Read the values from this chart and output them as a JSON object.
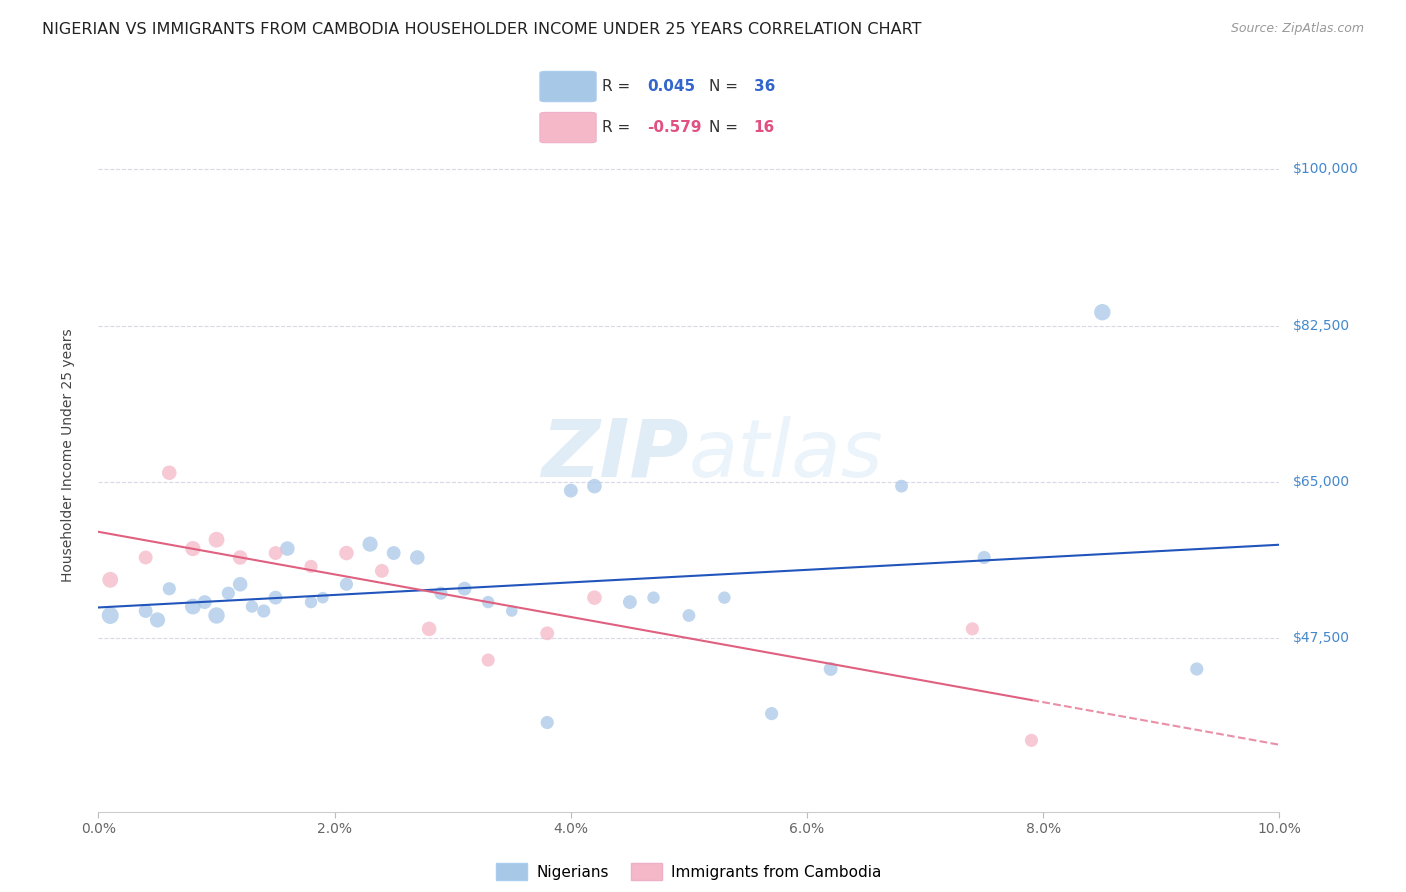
{
  "title": "NIGERIAN VS IMMIGRANTS FROM CAMBODIA HOUSEHOLDER INCOME UNDER 25 YEARS CORRELATION CHART",
  "source": "Source: ZipAtlas.com",
  "ylabel": "Householder Income Under 25 years",
  "ytick_labels": [
    "$100,000",
    "$82,500",
    "$65,000",
    "$47,500"
  ],
  "ytick_values": [
    100000,
    82500,
    65000,
    47500
  ],
  "xmin": 0.0,
  "xmax": 0.1,
  "ymin": 28000,
  "ymax": 108000,
  "blue_color": "#a8c8e8",
  "blue_line_color": "#2255bb",
  "pink_color": "#f4b8c8",
  "pink_line_color": "#e06080",
  "R_blue": 0.045,
  "N_blue": 36,
  "R_pink": -0.579,
  "N_pink": 16,
  "blue_scatter_x": [
    0.001,
    0.004,
    0.005,
    0.006,
    0.008,
    0.009,
    0.01,
    0.011,
    0.012,
    0.013,
    0.014,
    0.015,
    0.016,
    0.018,
    0.019,
    0.021,
    0.023,
    0.025,
    0.027,
    0.029,
    0.031,
    0.033,
    0.035,
    0.038,
    0.04,
    0.042,
    0.045,
    0.047,
    0.05,
    0.053,
    0.057,
    0.062,
    0.068,
    0.075,
    0.085,
    0.093
  ],
  "blue_scatter_y": [
    50000,
    50500,
    49500,
    53000,
    51000,
    51500,
    50000,
    52500,
    53500,
    51000,
    50500,
    52000,
    57500,
    51500,
    52000,
    53500,
    58000,
    57000,
    56500,
    52500,
    53000,
    51500,
    50500,
    38000,
    64000,
    64500,
    51500,
    52000,
    50000,
    52000,
    39000,
    44000,
    64500,
    56500,
    84000,
    44000
  ],
  "blue_scatter_sizes": [
    150,
    100,
    120,
    90,
    130,
    100,
    140,
    90,
    110,
    80,
    90,
    100,
    110,
    80,
    70,
    90,
    120,
    100,
    110,
    90,
    100,
    80,
    70,
    90,
    100,
    110,
    100,
    80,
    85,
    80,
    90,
    100,
    85,
    90,
    140,
    90
  ],
  "pink_scatter_x": [
    0.001,
    0.004,
    0.006,
    0.008,
    0.01,
    0.012,
    0.015,
    0.018,
    0.021,
    0.024,
    0.028,
    0.033,
    0.038,
    0.042,
    0.074,
    0.079
  ],
  "pink_scatter_y": [
    54000,
    56500,
    66000,
    57500,
    58500,
    56500,
    57000,
    55500,
    57000,
    55000,
    48500,
    45000,
    48000,
    52000,
    48500,
    36000
  ],
  "pink_scatter_sizes": [
    130,
    100,
    110,
    120,
    130,
    110,
    100,
    90,
    110,
    100,
    110,
    90,
    100,
    110,
    90,
    90
  ],
  "watermark_zip": "ZIP",
  "watermark_atlas": "atlas",
  "background_color": "#ffffff",
  "grid_color": "#d8d8e8",
  "title_fontsize": 11.5,
  "axis_label_fontsize": 10,
  "tick_fontsize": 10,
  "legend_fontsize": 11
}
